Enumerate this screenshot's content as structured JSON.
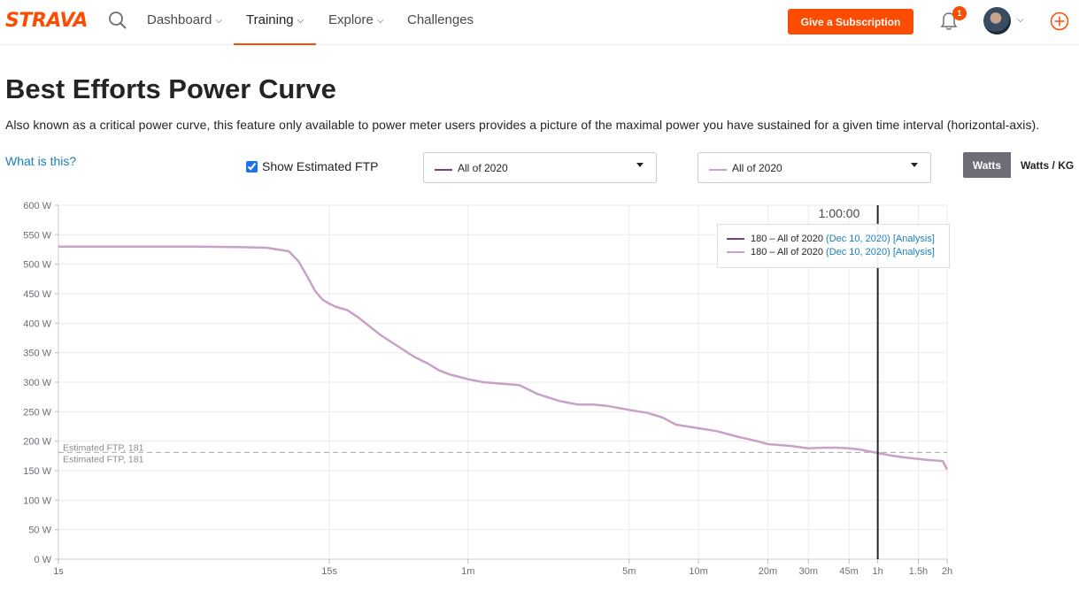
{
  "nav": {
    "logo": "STRAVA",
    "items": [
      {
        "label": "Dashboard",
        "chevron": true
      },
      {
        "label": "Training",
        "chevron": true,
        "active": true
      },
      {
        "label": "Explore",
        "chevron": true
      },
      {
        "label": "Challenges",
        "chevron": false
      }
    ],
    "subscription_button": "Give a Subscription",
    "notification_count": "1",
    "icons": [
      "search-icon",
      "bell-icon",
      "avatar",
      "chevron-down-icon",
      "plus-circle-icon"
    ]
  },
  "page": {
    "title": "Best Efforts Power Curve",
    "description": "Also known as a critical power curve, this feature only available to power meter users provides a picture of the maximal power you have sustained for a given time interval (horizontal-axis).",
    "what_link": "What is this?"
  },
  "controls": {
    "show_ftp_label": "Show Estimated FTP",
    "show_ftp_checked": true,
    "select_1": {
      "value": "All of 2020",
      "color": "#7b3f7e"
    },
    "select_2": {
      "value": "All of 2020",
      "color": "#c9a0c6"
    },
    "unit_watts": "Watts",
    "unit_wkg": "Watts / KG",
    "unit_selected": "Watts"
  },
  "colors": {
    "brand": "#fc4c02",
    "link": "#1a7fb8"
  },
  "chart_data": {
    "type": "line",
    "x_scale": "log",
    "x_unit": "seconds",
    "xlim": [
      1,
      7200
    ],
    "ylim": [
      0,
      600
    ],
    "ylabel": "",
    "xlabel": "",
    "y_ticks": [
      {
        "value": 0,
        "label": "0 W"
      },
      {
        "value": 50,
        "label": "50 W"
      },
      {
        "value": 100,
        "label": "100 W"
      },
      {
        "value": 150,
        "label": "150 W"
      },
      {
        "value": 200,
        "label": "200 W"
      },
      {
        "value": 250,
        "label": "250 W"
      },
      {
        "value": 300,
        "label": "300 W"
      },
      {
        "value": 350,
        "label": "350 W"
      },
      {
        "value": 400,
        "label": "400 W"
      },
      {
        "value": 450,
        "label": "450 W"
      },
      {
        "value": 500,
        "label": "500 W"
      },
      {
        "value": 550,
        "label": "550 W"
      },
      {
        "value": 600,
        "label": "600 W"
      }
    ],
    "x_ticks": [
      {
        "value": 1,
        "label": "1s"
      },
      {
        "value": 15,
        "label": "15s"
      },
      {
        "value": 60,
        "label": "1m"
      },
      {
        "value": 300,
        "label": "5m"
      },
      {
        "value": 600,
        "label": "10m"
      },
      {
        "value": 1200,
        "label": "20m"
      },
      {
        "value": 1800,
        "label": "30m"
      },
      {
        "value": 2700,
        "label": "45m"
      },
      {
        "value": 3600,
        "label": "1h"
      },
      {
        "value": 5400,
        "label": "1.5h"
      },
      {
        "value": 7200,
        "label": "2h"
      }
    ],
    "grid": true,
    "ftp_lines": [
      {
        "value": 181,
        "label": "Estimated FTP, 181"
      },
      {
        "value": 181,
        "label": "Estimated FTP, 181"
      }
    ],
    "cursor": {
      "x": 3600,
      "label": "1:00:00"
    },
    "tooltip": [
      {
        "value_text": "180 – All of 2020",
        "date": "(Dec 10, 2020)",
        "analysis": "[Analysis]",
        "color": "#7b3f7e"
      },
      {
        "value_text": "180 – All of 2020",
        "date": "(Dec 10, 2020)",
        "analysis": "[Analysis]",
        "color": "#c9a0c6"
      }
    ],
    "series": [
      {
        "color": "#c9a0c6",
        "x": [
          1,
          2,
          4,
          6,
          8,
          10,
          11,
          12,
          13,
          14,
          15,
          16,
          18,
          20,
          25,
          30,
          35,
          40,
          45,
          50,
          55,
          60,
          70,
          80,
          100,
          120,
          150,
          180,
          210,
          240,
          300,
          360,
          420,
          480,
          600,
          720,
          900,
          1080,
          1200,
          1500,
          1800,
          2100,
          2400,
          2700,
          3000,
          3600,
          4200,
          4800,
          5400,
          6000,
          6600,
          6900,
          7200
        ],
        "y": [
          530,
          530,
          530,
          529,
          528,
          522,
          505,
          480,
          455,
          440,
          433,
          428,
          422,
          410,
          380,
          360,
          343,
          332,
          320,
          313,
          309,
          305,
          300,
          298,
          295,
          280,
          268,
          262,
          262,
          260,
          253,
          248,
          240,
          228,
          222,
          217,
          207,
          200,
          195,
          192,
          188,
          189,
          189,
          188,
          186,
          180,
          175,
          172,
          170,
          168,
          167,
          166,
          152
        ]
      }
    ]
  }
}
